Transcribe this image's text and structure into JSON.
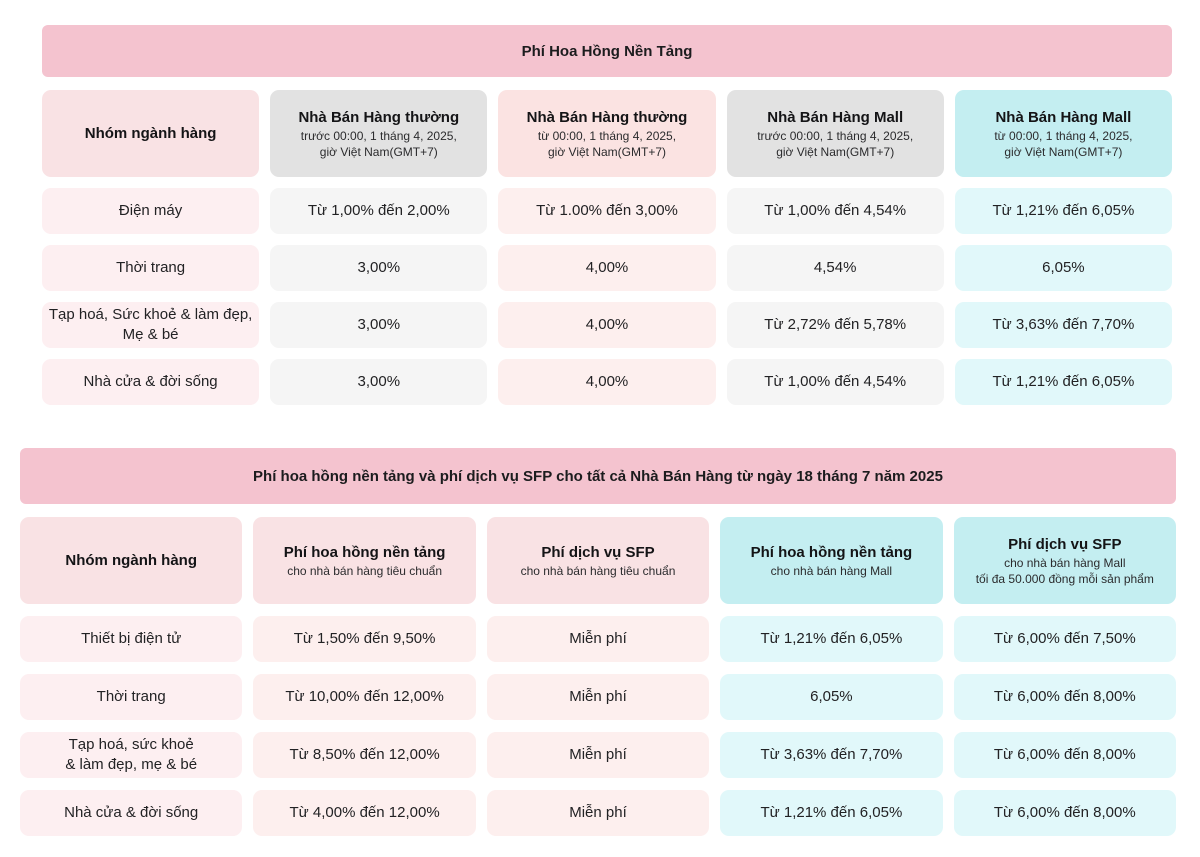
{
  "colors": {
    "banner_pink": "#f4c3cf",
    "header_pink": "#f9e2e4",
    "header_gray": "#e2e2e2",
    "header_cyan": "#c4eef1",
    "cell_category_pink": "#fdeff1",
    "cell_gray": "#f5f5f5",
    "cell_pink": "#fdefee",
    "cell_cyan": "#e1f8fa",
    "text_dark": "#1b1b1d"
  },
  "table1": {
    "title": "Phí Hoa Hồng Nền Tảng",
    "columns": [
      {
        "title": "Nhóm ngành hàng"
      },
      {
        "title": "Nhà Bán Hàng thường",
        "sub1": "trước 00:00, 1 tháng 4, 2025,",
        "sub2": "giờ Việt Nam(GMT+7)"
      },
      {
        "title": "Nhà Bán Hàng thường",
        "sub1": "từ 00:00, 1 tháng 4, 2025,",
        "sub2": "giờ Việt Nam(GMT+7)"
      },
      {
        "title": "Nhà Bán Hàng Mall",
        "sub1": "trước 00:00, 1 tháng 4, 2025,",
        "sub2": "giờ Việt Nam(GMT+7)"
      },
      {
        "title": "Nhà Bán Hàng Mall",
        "sub1": "từ 00:00, 1 tháng 4, 2025,",
        "sub2": "giờ Việt Nam(GMT+7)"
      }
    ],
    "rows": [
      {
        "category": "Điện máy",
        "values": [
          "Từ 1,00% đến 2,00%",
          "Từ 1.00% đến 3,00%",
          "Từ 1,00% đến 4,54%",
          "Từ 1,21% đến 6,05%"
        ]
      },
      {
        "category": "Thời trang",
        "values": [
          "3,00%",
          "4,00%",
          "4,54%",
          "6,05%"
        ]
      },
      {
        "category": "Tạp hoá, Sức khoẻ & làm đẹp,\nMẹ & bé",
        "values": [
          "3,00%",
          "4,00%",
          "Từ 2,72% đến 5,78%",
          "Từ 3,63% đến 7,70%"
        ]
      },
      {
        "category": "Nhà cửa & đời sống",
        "values": [
          "3,00%",
          "4,00%",
          "Từ 1,00% đến 4,54%",
          "Từ 1,21% đến 6,05%"
        ]
      }
    ]
  },
  "table2": {
    "title": "Phí hoa hồng nền tảng và phí dịch vụ SFP cho tất cả Nhà Bán Hàng từ ngày 18 tháng 7 năm 2025",
    "columns": [
      {
        "title": "Nhóm ngành hàng"
      },
      {
        "title": "Phí hoa hồng nền tảng",
        "sub1": "cho nhà bán hàng tiêu chuẩn"
      },
      {
        "title": "Phí dịch vụ SFP",
        "sub1": "cho nhà bán hàng tiêu chuẩn"
      },
      {
        "title": "Phí hoa hồng nền tảng",
        "sub1": "cho nhà bán hàng Mall"
      },
      {
        "title": "Phí dịch vụ SFP",
        "sub1": "cho nhà bán hàng Mall",
        "sub2": "tối đa 50.000 đồng mỗi sản phẩm"
      }
    ],
    "rows": [
      {
        "category": "Thiết bị điện tử",
        "values": [
          "Từ 1,50% đến 9,50%",
          "Miễn phí",
          "Từ 1,21% đến 6,05%",
          "Từ 6,00% đến 7,50%"
        ]
      },
      {
        "category": "Thời trang",
        "values": [
          "Từ 10,00% đến 12,00%",
          "Miễn phí",
          "6,05%",
          "Từ 6,00% đến 8,00%"
        ]
      },
      {
        "category": "Tạp hoá, sức khoẻ\n& làm đẹp, mẹ & bé",
        "values": [
          "Từ 8,50% đến 12,00%",
          "Miễn phí",
          "Từ 3,63% đến 7,70%",
          "Từ 6,00% đến 8,00%"
        ]
      },
      {
        "category": "Nhà cửa & đời sống",
        "values": [
          "Từ 4,00% đến 12,00%",
          "Miễn phí",
          "Từ 1,21% đến 6,05%",
          "Từ 6,00% đến 8,00%"
        ]
      }
    ]
  }
}
